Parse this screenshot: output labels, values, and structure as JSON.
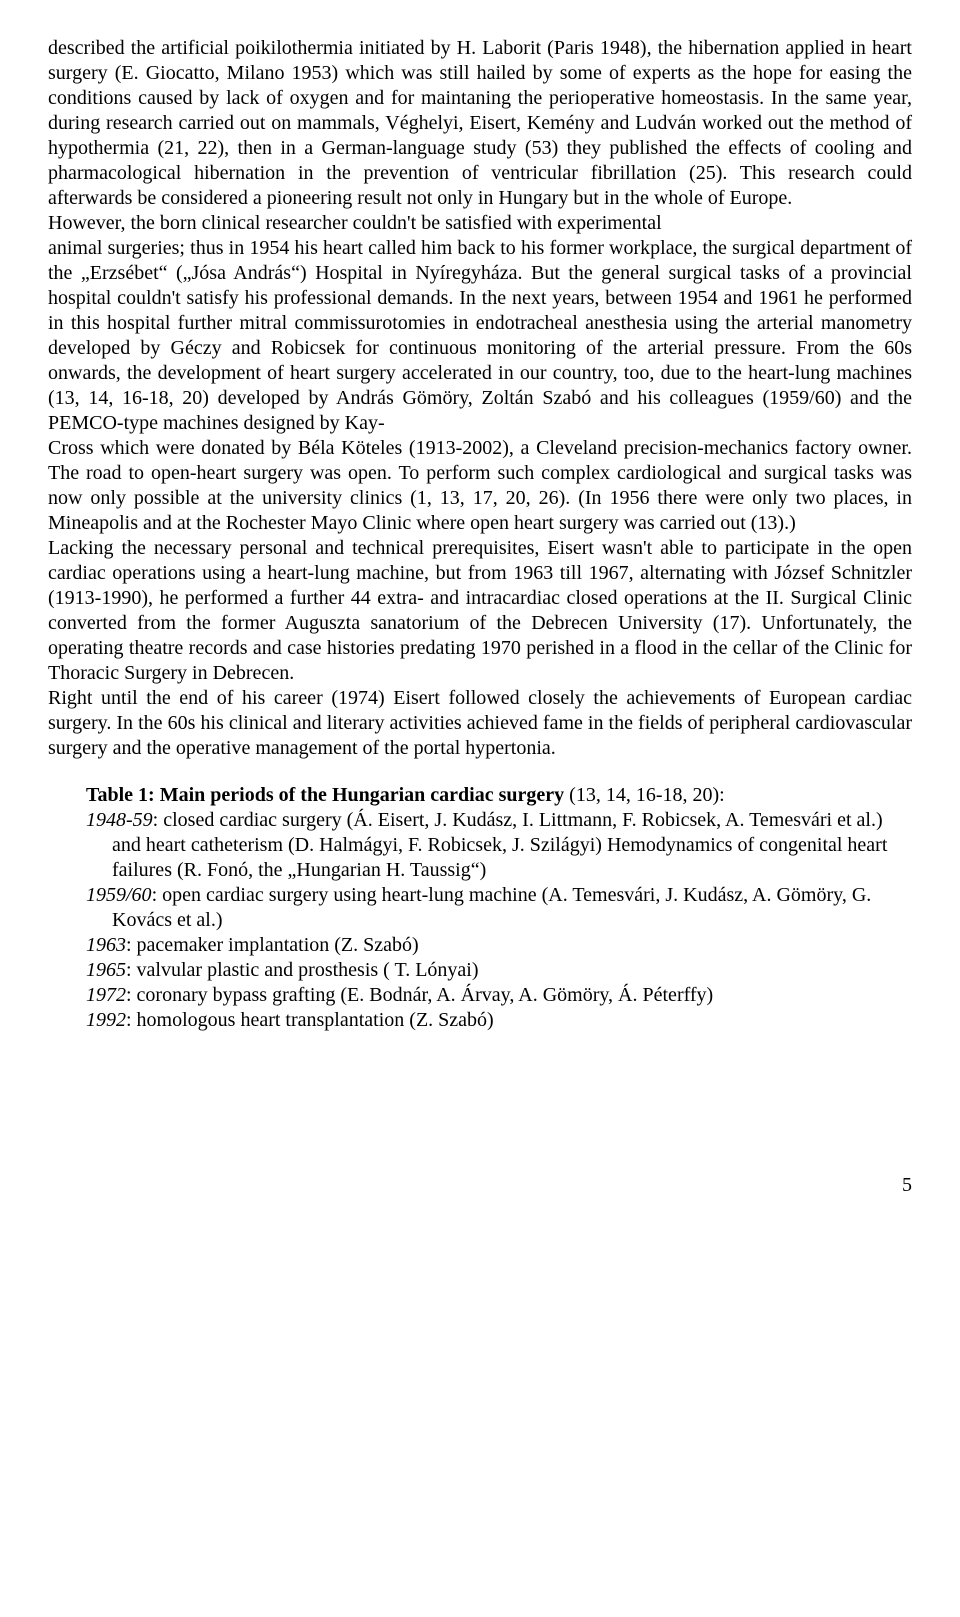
{
  "p1": "described the artificial poikilothermia initiated by H. Laborit (Paris 1948), the hibernation applied in heart surgery (E. Giocatto, Milano 1953) which was still hailed by some of experts as the hope for easing the conditions caused by lack of oxygen and for maintaning the perioperative homeostasis. In the same year, during research carried out on mammals, Véghelyi, Eisert, Kemény and Ludván worked out the method of hypothermia (21, 22), then in a German-language study (53) they published the  effects of cooling and pharmacological hibernation in the prevention of ventricular fibrillation (25). This research could afterwards be considered a pioneering result not only in Hungary but in the whole of Europe.",
  "p2": "However,  the born clinical researcher couldn't be satisfied with experimental",
  "p3": " animal surgeries; thus in 1954 his heart called him back to his former workplace, the surgical department of the „Erzsébet“ („Jósa András“) Hospital in Nyíregyháza. But the general surgical tasks of a provincial hospital couldn't satisfy his professional demands. In the next years, between 1954 and 1961 he performed in this hospital further mitral commissurotomies in endotracheal anesthesia using the arterial manometry developed by Géczy and Robicsek for continuous monitoring of the arterial pressure.  From the 60s onwards, the development of heart surgery accelerated in our country, too, due to the heart-lung machines (13, 14, 16-18, 20) developed by András Gömöry, Zoltán Szabó and his colleagues (1959/60) and the PEMCO-type machines designed by Kay-",
  "p4": "Cross which were  donated by Béla Köteles (1913-2002), a Cleveland precision-mechanics factory owner. The road to open-heart surgery was open. To perform such complex cardiological and surgical tasks was now only possible at the university clinics (1, 13, 17, 20, 26). (In 1956 there were only two places, in Mineapolis and at the Rochester Mayo Clinic where open heart surgery was carried out (13).)",
  "p5": "Lacking the necessary personal and technical prerequisites, Eisert wasn't able to participate in the open cardiac operations using a heart-lung machine, but from 1963 till 1967, alternating with József Schnitzler (1913-1990), he performed a further 44 extra- and intracardiac closed operations at the II. Surgical Clinic converted from the former Auguszta sanatorium of the Debrecen University (17). Unfortunately, the operating theatre records and case histories predating 1970 perished in a flood in the cellar of the Clinic for Thoracic Surgery in Debrecen.",
  "p6": "Right until the end of his career (1974) Eisert followed closely the achievements of European cardiac surgery. In the 60s his clinical and literary activities achieved fame in the fields of peripheral cardiovascular surgery and the operative management of the portal hypertonia.",
  "table": {
    "title_bold": "Table 1: Main periods of the Hungarian cardiac surgery",
    "title_rest": " (13, 14, 16-18, 20):",
    "rows": [
      {
        "year": "1948-59",
        "text": ":  closed cardiac surgery (Á. Eisert, J. Kudász, I. Littmann, F. Robicsek, A. Temesvári et al.) and heart catheterism (D. Halmágyi, F. Robicsek, J. Szilágyi) Hemodynamics of congenital heart failures (R. Fonó, the „Hungarian H. Taussig“)"
      },
      {
        "year": "1959/60",
        "text": ": open cardiac surgery using heart-lung machine (A. Temesvári, J. Kudász, A. Gömöry, G. Kovács et al.)"
      },
      {
        "year": "1963",
        "text": ": pacemaker implantation (Z. Szabó)"
      },
      {
        "year": "1965",
        "text": ": valvular plastic and prosthesis ( T. Lónyai)"
      },
      {
        "year": "1972",
        "text": ": coronary bypass grafting (E. Bodnár, A. Árvay, A. Gömöry, Á. Péterffy)"
      },
      {
        "year": "1992",
        "text": ": homologous heart transplantation (Z. Szabó)"
      }
    ]
  },
  "pagenum": "5"
}
